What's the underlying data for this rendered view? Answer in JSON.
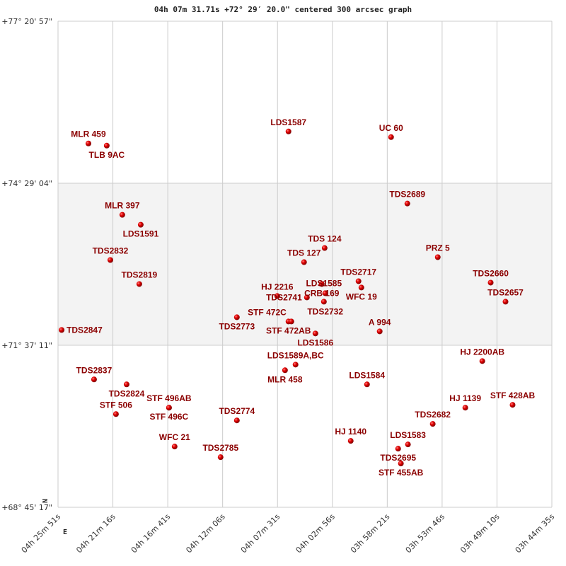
{
  "chart_data": {
    "type": "scatter",
    "title": "04h 07m 31.71s +72° 29′ 20.0\" centered 300 arcsec graph",
    "x_unit": "RA (minutes of time)",
    "y_unit": "Dec (degrees)",
    "xlim_ra_min": [
      265.85,
      224.6
    ],
    "ylim_dec_deg": [
      68.755,
      77.349
    ],
    "x_tick_labels": [
      "04h 25m 51s",
      "04h 21m 16s",
      "04h 16m 41s",
      "04h 12m 06s",
      "04h 07m 31s",
      "04h 02m 56s",
      "03h 58m 21s",
      "03h 53m 46s",
      "03h 49m 10s",
      "03h 44m 35s"
    ],
    "y_tick_labels": [
      "+77° 20' 57\"",
      "+74° 29' 04\"",
      "+71° 37' 11\"",
      "+68° 45' 17\""
    ],
    "shaded_band": "between +74° 29' 04\" and +71° 37' 11\"",
    "grid": true,
    "compass": {
      "north": "N",
      "east": "E"
    },
    "marker_color": "#dd0000",
    "label_color": "#8b0000",
    "points": [
      {
        "name": "MLR 459",
        "ra": 263.31,
        "dec": 75.188
      },
      {
        "name": "TLB 9AC",
        "ra": 261.78,
        "dec": 75.15
      },
      {
        "name": "LDS1587",
        "ra": 246.6,
        "dec": 75.4
      },
      {
        "name": "UC   60",
        "ra": 238.03,
        "dec": 75.3
      },
      {
        "name": "TDS2689",
        "ra": 236.67,
        "dec": 74.126
      },
      {
        "name": "MLR 397",
        "ra": 260.48,
        "dec": 73.926
      },
      {
        "name": "LDS1591",
        "ra": 258.94,
        "dec": 73.751
      },
      {
        "name": "TDS2832",
        "ra": 261.48,
        "dec": 73.127
      },
      {
        "name": "TDS 124",
        "ra": 243.58,
        "dec": 73.339
      },
      {
        "name": "TDS 127",
        "ra": 245.3,
        "dec": 73.089
      },
      {
        "name": "PRZ   5",
        "ra": 234.13,
        "dec": 73.177
      },
      {
        "name": "TDS2819",
        "ra": 259.06,
        "dec": 72.702
      },
      {
        "name": "TDS2717",
        "ra": 240.75,
        "dec": 72.752
      },
      {
        "name": "WFC  19",
        "ra": 240.51,
        "dec": 72.64
      },
      {
        "name": "CRB 169",
        "ra": 243.82,
        "dec": 72.702
      },
      {
        "name": "TDS2732",
        "ra": 243.53,
        "dec": 72.54
      },
      {
        "name": "TDS2741",
        "ra": 245.06,
        "dec": 72.465
      },
      {
        "name": "LDS1585",
        "ra": 243.64,
        "dec": 72.39
      },
      {
        "name": "HJ 2216",
        "ra": 247.54,
        "dec": 72.49
      },
      {
        "name": "STF 472AB",
        "ra": 246.6,
        "dec": 72.04
      },
      {
        "name": "STF 472C",
        "ra": 246.36,
        "dec": 72.04
      },
      {
        "name": "LDS1586",
        "ra": 244.35,
        "dec": 71.828
      },
      {
        "name": "A   994",
        "ra": 238.98,
        "dec": 71.865
      },
      {
        "name": "TDS2660",
        "ra": 229.71,
        "dec": 72.727
      },
      {
        "name": "TDS2657",
        "ra": 228.47,
        "dec": 72.39
      },
      {
        "name": "TDS2773",
        "ra": 250.91,
        "dec": 72.115
      },
      {
        "name": "TDS2847",
        "ra": 265.55,
        "dec": 71.89
      },
      {
        "name": "LDS1589A,BC",
        "ra": 246.01,
        "dec": 71.278
      },
      {
        "name": "MLR 458",
        "ra": 246.89,
        "dec": 71.178
      },
      {
        "name": "HJ 2200AB",
        "ra": 230.41,
        "dec": 71.34
      },
      {
        "name": "TDS2837",
        "ra": 262.84,
        "dec": 71.016
      },
      {
        "name": "TDS2824",
        "ra": 260.12,
        "dec": 70.928
      },
      {
        "name": "LDS1584",
        "ra": 240.04,
        "dec": 70.928
      },
      {
        "name": "STF 496AB",
        "ra": 256.58,
        "dec": 70.516
      },
      {
        "name": "STF 496C",
        "ra": 256.58,
        "dec": 70.516
      },
      {
        "name": "STF 428AB",
        "ra": 227.88,
        "dec": 70.566
      },
      {
        "name": "HJ 1139",
        "ra": 231.83,
        "dec": 70.516
      },
      {
        "name": "STF 506",
        "ra": 261.01,
        "dec": 70.403
      },
      {
        "name": "TDS2774",
        "ra": 250.91,
        "dec": 70.291
      },
      {
        "name": "TDS2682",
        "ra": 234.55,
        "dec": 70.229
      },
      {
        "name": "HJ 1140",
        "ra": 241.4,
        "dec": 69.929
      },
      {
        "name": "LDS1583",
        "ra": 236.62,
        "dec": 69.866
      },
      {
        "name": "TDS2695",
        "ra": 237.44,
        "dec": 69.791
      },
      {
        "name": "WFC  21",
        "ra": 256.11,
        "dec": 69.829
      },
      {
        "name": "TDS2785",
        "ra": 252.27,
        "dec": 69.641
      },
      {
        "name": "STF 455AB",
        "ra": 237.21,
        "dec": 69.529
      }
    ]
  }
}
